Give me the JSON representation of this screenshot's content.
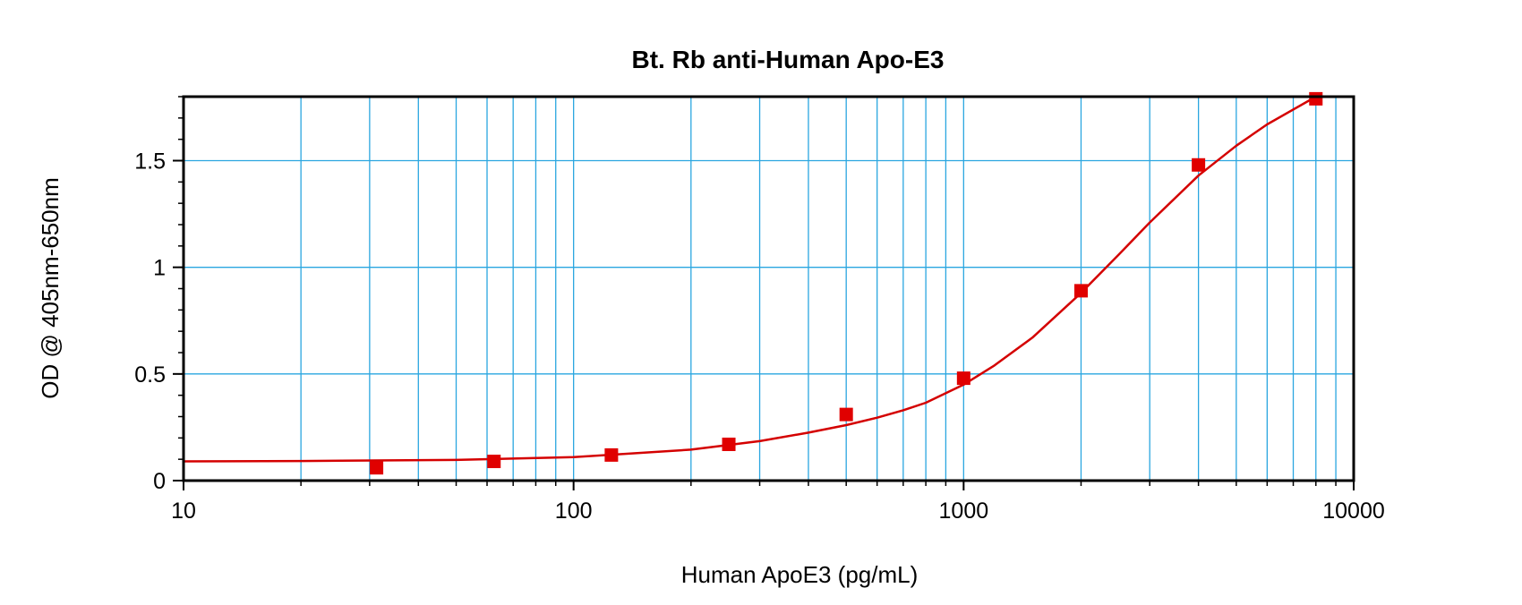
{
  "chart_data": {
    "type": "scatter",
    "title": "Bt. Rb anti-Human Apo-E3",
    "xlabel": "Human ApoE3 (pg/mL)",
    "ylabel": "OD @ 405nm-650nm",
    "x_scale": "log",
    "xlim": [
      10,
      10000
    ],
    "ylim": [
      0,
      1.8
    ],
    "x_ticks": [
      10,
      100,
      1000,
      10000
    ],
    "x_tick_labels": [
      "10",
      "100",
      "1000",
      "10000"
    ],
    "y_ticks": [
      0,
      0.5,
      1,
      1.5
    ],
    "y_tick_labels": [
      "0",
      "0.5",
      "1",
      "1.5"
    ],
    "grid": true,
    "series": [
      {
        "kind": "points",
        "marker": "square",
        "color": "#e00000",
        "x": [
          31.25,
          62.5,
          125,
          250,
          500,
          1000,
          2000,
          4000,
          8000
        ],
        "y": [
          0.06,
          0.09,
          0.12,
          0.17,
          0.31,
          0.48,
          0.89,
          1.48,
          1.79
        ]
      },
      {
        "kind": "fit-curve",
        "color": "#d40000",
        "x": [
          10,
          20,
          50,
          100,
          200,
          300,
          400,
          500,
          600,
          700,
          800,
          1000,
          1200,
          1500,
          2000,
          2500,
          3000,
          4000,
          5000,
          6000,
          8000
        ],
        "y": [
          0.09,
          0.092,
          0.097,
          0.11,
          0.145,
          0.185,
          0.225,
          0.26,
          0.295,
          0.33,
          0.365,
          0.45,
          0.54,
          0.67,
          0.88,
          1.06,
          1.21,
          1.43,
          1.57,
          1.67,
          1.8
        ]
      }
    ],
    "colors": {
      "grid": "#2aa6e0",
      "frame": "#000000",
      "background": "#ffffff"
    }
  }
}
